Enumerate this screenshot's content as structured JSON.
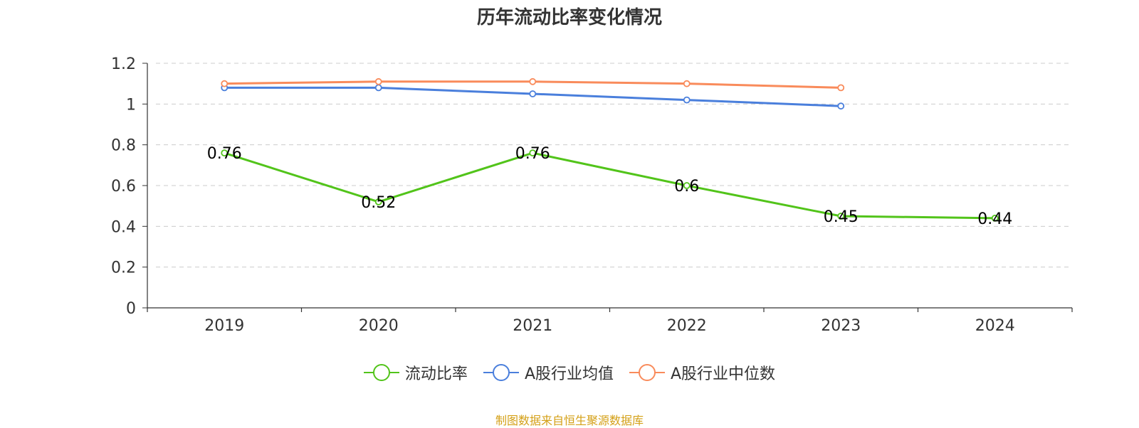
{
  "chart_data": {
    "type": "line",
    "title": "历年流动比率变化情况",
    "categories": [
      "2019",
      "2020",
      "2021",
      "2022",
      "2023",
      "2024"
    ],
    "ylim": [
      0,
      1.2
    ],
    "yticks": [
      "0",
      "0.2",
      "0.4",
      "0.6",
      "0.8",
      "1",
      "1.2"
    ],
    "grid": true,
    "legend_position": "bottom",
    "series": [
      {
        "name": "流动比率",
        "color": "#52c41a",
        "values": [
          0.76,
          0.52,
          0.76,
          0.6,
          0.45,
          0.44
        ],
        "show_labels": true,
        "labels": [
          "0.76",
          "0.52",
          "0.76",
          "0.6",
          "0.45",
          "0.44"
        ]
      },
      {
        "name": "A股行业均值",
        "color": "#4a7fdc",
        "values": [
          1.08,
          1.08,
          1.05,
          1.02,
          0.99,
          null
        ],
        "show_labels": false
      },
      {
        "name": "A股行业中位数",
        "color": "#f98b5b",
        "values": [
          1.1,
          1.11,
          1.11,
          1.1,
          1.08,
          null
        ],
        "show_labels": false
      }
    ]
  },
  "source": "制图数据来自恒生聚源数据库"
}
